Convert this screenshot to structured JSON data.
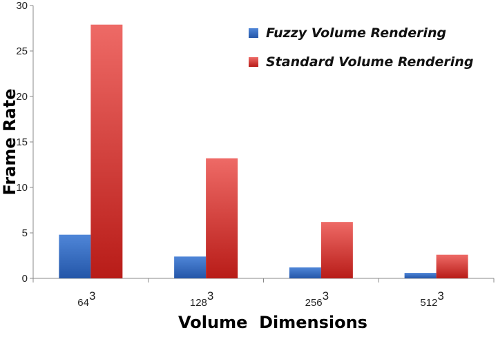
{
  "chart_data": {
    "type": "bar",
    "categories": [
      "64",
      "128",
      "256",
      "512"
    ],
    "category_superscript": "3",
    "series": [
      {
        "name": "Fuzzy Volume Rendering",
        "values": [
          4.8,
          2.4,
          1.2,
          0.6
        ],
        "color": "#3a72c8"
      },
      {
        "name": "Standard Volume Rendering",
        "values": [
          27.9,
          13.2,
          6.2,
          2.6
        ],
        "color": "#d9302c"
      }
    ],
    "xlabel": "Volume  Dimensions",
    "ylabel": "Frame Rate",
    "ylim": [
      0,
      30
    ],
    "yticks": [
      "0",
      "5",
      "10",
      "15",
      "20",
      "25",
      "30"
    ],
    "legend_position": "top-right",
    "grid": false
  }
}
